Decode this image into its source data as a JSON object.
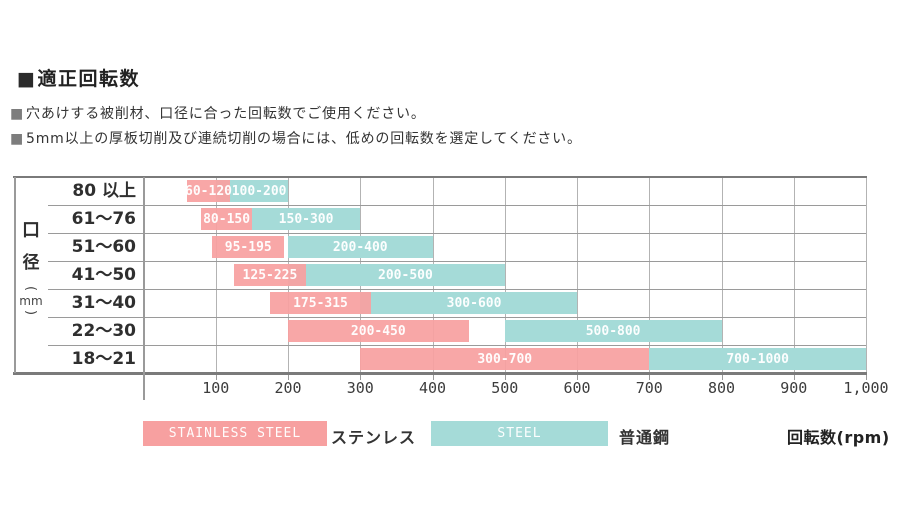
{
  "header": {
    "title_bullet": "■",
    "title": "適正回転数",
    "notes": [
      {
        "bullet": "■",
        "text": "穴あけする被削材、口径に合った回転数でご使用ください。"
      },
      {
        "bullet": "■",
        "text": "5mm以上の厚板切削及び連続切削の場合には、低めの回転数を選定してください。"
      }
    ]
  },
  "y_axis_label": {
    "char1": "口",
    "char2": "径",
    "paren_open": "(",
    "unit": "mm",
    "paren_close": ")"
  },
  "chart_data": {
    "type": "bar",
    "subtype": "horizontal-range",
    "title": "適正回転数",
    "xlabel": "回転数(rpm)",
    "ylabel": "口径(mm)",
    "xlim": [
      0,
      1000
    ],
    "grid": true,
    "legend_position": "bottom",
    "x_ticks": [
      "100",
      "200",
      "300",
      "400",
      "500",
      "600",
      "700",
      "800",
      "900",
      "1,000"
    ],
    "categories": [
      "80 以上",
      "61〜76",
      "51〜60",
      "41〜50",
      "31〜40",
      "22〜30",
      "18〜21"
    ],
    "series": [
      {
        "name": "STAINLESS STEEL",
        "label_jp": "ステンレス",
        "color": "#f7a0a0",
        "ranges": [
          [
            60,
            120
          ],
          [
            80,
            150
          ],
          [
            95,
            195
          ],
          [
            125,
            225
          ],
          [
            175,
            315
          ],
          [
            200,
            450
          ],
          [
            300,
            700
          ]
        ],
        "range_labels": [
          "60-120",
          "80-150",
          "95-195",
          "125-225",
          "175-315",
          "200-450",
          "300-700"
        ]
      },
      {
        "name": "STEEL",
        "label_jp": "普通鋼",
        "color": "#a5dbd8",
        "ranges": [
          [
            100,
            200
          ],
          [
            150,
            300
          ],
          [
            200,
            400
          ],
          [
            200,
            500
          ],
          [
            300,
            600
          ],
          [
            500,
            800
          ],
          [
            700,
            1000
          ]
        ],
        "range_labels": [
          "100-200",
          "150-300",
          "200-400",
          "200-500",
          "300-600",
          "500-800",
          "700-1000"
        ]
      }
    ]
  }
}
